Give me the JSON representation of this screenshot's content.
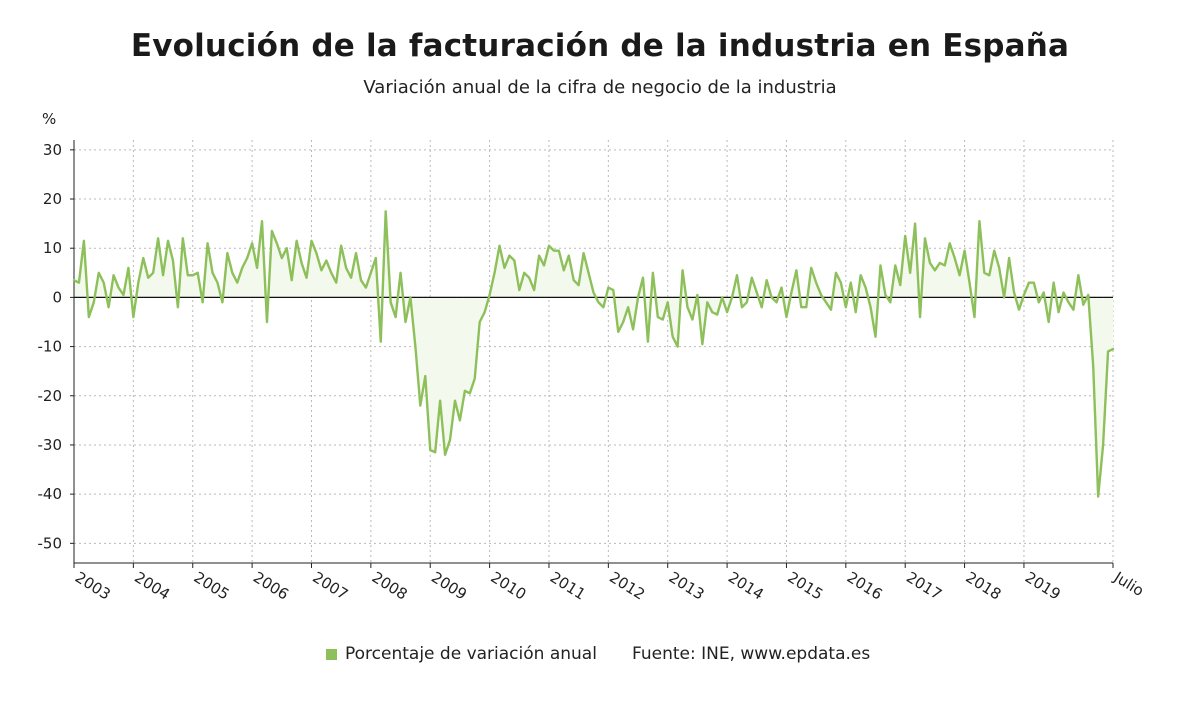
{
  "title": "Evolución de la facturación de la industria en España",
  "subtitle": "Variación anual de la cifra de negocio de la industria",
  "legend_label": "Porcentaje de variación anual",
  "source": "Fuente: INE, www.epdata.es",
  "colors": {
    "line": "#8dc05a",
    "fill": "#f3f9ec",
    "grid": "#b9b9b9",
    "axis": "#222222",
    "zero": "#111111"
  },
  "chart_data": {
    "type": "line",
    "title": "Evolución de la facturación de la industria en España",
    "subtitle": "Variación anual de la cifra de negocio de la industria",
    "ylabel": "%",
    "xlabel": "",
    "ylim": [
      -54,
      32
    ],
    "yticks": [
      30,
      20,
      10,
      0,
      -10,
      -20,
      -30,
      -40,
      -50
    ],
    "xticks": [
      "2003",
      "2004",
      "2005",
      "2006",
      "2007",
      "2008",
      "2009",
      "2010",
      "2011",
      "2012",
      "2013",
      "2014",
      "2015",
      "2016",
      "2017",
      "2018",
      "2019",
      "Julio"
    ],
    "x_start": "2003-01",
    "x_end": "2020-07",
    "grid": true,
    "legend_position": "bottom",
    "series": [
      {
        "name": "Porcentaje de variación anual",
        "values": [
          3.5,
          3.0,
          11.5,
          -4.0,
          -1.0,
          5.0,
          3.0,
          -2.0,
          4.5,
          2.0,
          0.5,
          6.0,
          -4.0,
          3.0,
          8.0,
          4.0,
          5.0,
          12.0,
          4.5,
          11.5,
          7.5,
          -2.0,
          12.0,
          4.5,
          4.5,
          5.0,
          -1.0,
          11.0,
          5.0,
          3.0,
          -1.0,
          9.0,
          5.0,
          3.0,
          6.0,
          8.0,
          11.0,
          6.0,
          15.5,
          -5.0,
          13.5,
          11.0,
          8.0,
          10.0,
          3.5,
          11.5,
          7.0,
          4.0,
          11.5,
          9.0,
          5.5,
          7.5,
          5.0,
          3.0,
          10.5,
          6.0,
          4.0,
          9.0,
          3.5,
          2.0,
          5.0,
          8.0,
          -9.0,
          17.5,
          -1.0,
          -4.0,
          5.0,
          -5.0,
          0.0,
          -10.0,
          -22.0,
          -16.0,
          -31.0,
          -31.5,
          -21.0,
          -32.0,
          -29.0,
          -21.0,
          -25.0,
          -19.0,
          -19.5,
          -16.5,
          -5.0,
          -3.0,
          0.5,
          5.0,
          10.5,
          6.0,
          8.5,
          7.5,
          1.5,
          5.0,
          4.0,
          1.5,
          8.5,
          6.5,
          10.5,
          9.5,
          9.5,
          5.5,
          8.5,
          3.5,
          2.5,
          9.0,
          5.0,
          1.0,
          -1.0,
          -2.0,
          2.0,
          1.5,
          -7.0,
          -5.0,
          -2.0,
          -6.5,
          0.0,
          4.0,
          -9.0,
          5.0,
          -4.0,
          -4.5,
          -1.0,
          -8.0,
          -10.0,
          5.5,
          -2.0,
          -4.5,
          0.5,
          -9.5,
          -1.0,
          -3.0,
          -3.5,
          0.0,
          -3.0,
          0.0,
          4.5,
          -2.0,
          -1.0,
          4.0,
          1.0,
          -2.0,
          3.5,
          0.0,
          -1.0,
          2.0,
          -4.0,
          1.0,
          5.5,
          -2.0,
          -2.0,
          6.0,
          3.0,
          0.5,
          -1.0,
          -2.5,
          5.0,
          3.0,
          -2.0,
          3.0,
          -3.0,
          4.5,
          2.0,
          -2.0,
          -8.0,
          6.5,
          0.5,
          -1.0,
          6.5,
          2.5,
          12.5,
          5.0,
          15.0,
          -4.0,
          12.0,
          7.0,
          5.5,
          7.0,
          6.5,
          11.0,
          8.0,
          4.5,
          9.5,
          3.0,
          -4.0,
          15.5,
          5.0,
          4.5,
          9.5,
          6.0,
          0.0,
          8.0,
          1.0,
          -2.5,
          0.5,
          3.0,
          3.0,
          -1.0,
          1.0,
          -5.0,
          3.0,
          -3.0,
          1.0,
          -1.0,
          -2.5,
          4.5,
          -1.5,
          0.5,
          -14.0,
          -40.5,
          -30.0,
          -11.0,
          -10.5
        ]
      }
    ]
  }
}
